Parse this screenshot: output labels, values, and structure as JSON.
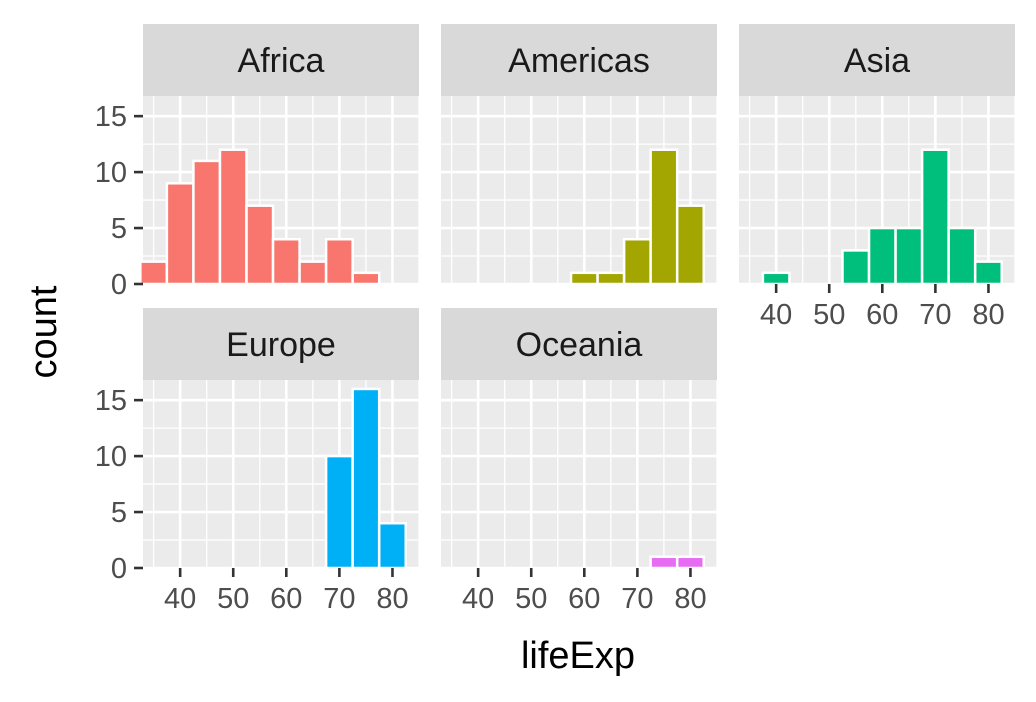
{
  "chart_data": {
    "type": "bar",
    "title": "",
    "xlabel": "lifeExp",
    "ylabel": "count",
    "xlim": [
      33,
      85
    ],
    "ylim": [
      0,
      16.8
    ],
    "bin_width": 5,
    "x_ticks": [
      40,
      50,
      60,
      70,
      80
    ],
    "y_ticks": [
      0,
      5,
      10,
      15
    ],
    "grid": true,
    "legend": "none",
    "panels": [
      {
        "name": "Africa",
        "color": "#F8766D",
        "bins": [
          {
            "x": 35,
            "count": 2
          },
          {
            "x": 40,
            "count": 9
          },
          {
            "x": 45,
            "count": 11
          },
          {
            "x": 50,
            "count": 12
          },
          {
            "x": 55,
            "count": 7
          },
          {
            "x": 60,
            "count": 4
          },
          {
            "x": 65,
            "count": 2
          },
          {
            "x": 70,
            "count": 4
          },
          {
            "x": 75,
            "count": 1
          }
        ]
      },
      {
        "name": "Americas",
        "color": "#A3A500",
        "bins": [
          {
            "x": 60,
            "count": 1
          },
          {
            "x": 65,
            "count": 1
          },
          {
            "x": 70,
            "count": 4
          },
          {
            "x": 75,
            "count": 12
          },
          {
            "x": 80,
            "count": 7
          }
        ]
      },
      {
        "name": "Asia",
        "color": "#00BF7D",
        "bins": [
          {
            "x": 40,
            "count": 1
          },
          {
            "x": 55,
            "count": 3
          },
          {
            "x": 60,
            "count": 5
          },
          {
            "x": 65,
            "count": 5
          },
          {
            "x": 70,
            "count": 12
          },
          {
            "x": 75,
            "count": 5
          },
          {
            "x": 80,
            "count": 2
          }
        ]
      },
      {
        "name": "Europe",
        "color": "#00B0F6",
        "bins": [
          {
            "x": 70,
            "count": 10
          },
          {
            "x": 75,
            "count": 16
          },
          {
            "x": 80,
            "count": 4
          }
        ]
      },
      {
        "name": "Oceania",
        "color": "#E76BF3",
        "bins": [
          {
            "x": 75,
            "count": 1
          },
          {
            "x": 80,
            "count": 1
          }
        ]
      }
    ]
  }
}
